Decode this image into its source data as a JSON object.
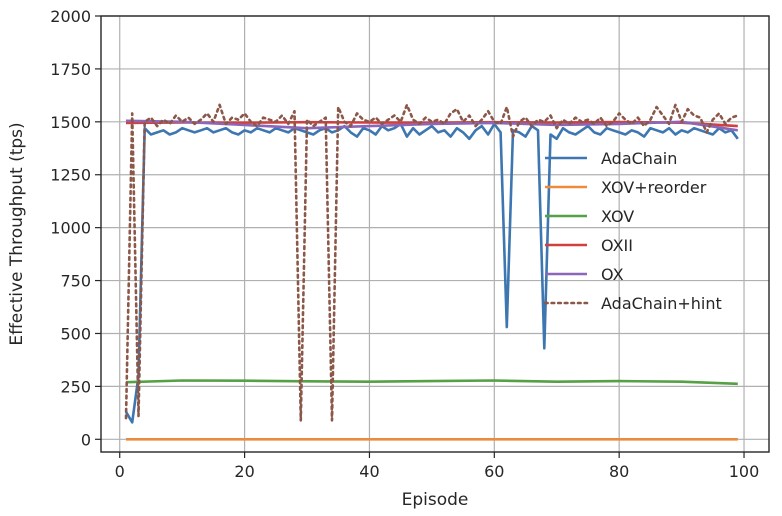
{
  "chart_data": {
    "type": "line",
    "xlabel": "Episode",
    "ylabel": "Effective Throughput (tps)",
    "xlim": [
      -3,
      104
    ],
    "ylim": [
      -60,
      2000
    ],
    "xticks": [
      0,
      20,
      40,
      60,
      80,
      100
    ],
    "yticks": [
      0,
      250,
      500,
      750,
      1000,
      1250,
      1500,
      1750,
      2000
    ],
    "grid": true,
    "legend_position": "center-right",
    "series": [
      {
        "name": "AdaChain",
        "color": "#3d76b0",
        "style": "solid",
        "x": [
          1,
          2,
          3,
          4,
          5,
          6,
          7,
          8,
          9,
          10,
          11,
          12,
          13,
          14,
          15,
          16,
          17,
          18,
          19,
          20,
          21,
          22,
          23,
          24,
          25,
          26,
          27,
          28,
          29,
          30,
          31,
          32,
          33,
          34,
          35,
          36,
          37,
          38,
          39,
          40,
          41,
          42,
          43,
          44,
          45,
          46,
          47,
          48,
          49,
          50,
          51,
          52,
          53,
          54,
          55,
          56,
          57,
          58,
          59,
          60,
          61,
          62,
          63,
          64,
          65,
          66,
          67,
          68,
          69,
          70,
          71,
          72,
          73,
          74,
          75,
          76,
          77,
          78,
          79,
          80,
          81,
          82,
          83,
          84,
          85,
          86,
          87,
          88,
          89,
          90,
          91,
          92,
          93,
          94,
          95,
          96,
          97,
          98,
          99
        ],
        "y": [
          130,
          80,
          300,
          1470,
          1440,
          1450,
          1460,
          1440,
          1450,
          1470,
          1460,
          1450,
          1460,
          1470,
          1450,
          1460,
          1470,
          1450,
          1440,
          1460,
          1450,
          1470,
          1460,
          1450,
          1470,
          1460,
          1450,
          1470,
          1460,
          1450,
          1440,
          1460,
          1470,
          1450,
          1460,
          1480,
          1450,
          1430,
          1470,
          1460,
          1440,
          1480,
          1460,
          1470,
          1490,
          1430,
          1470,
          1440,
          1460,
          1480,
          1450,
          1460,
          1430,
          1470,
          1450,
          1420,
          1460,
          1480,
          1440,
          1490,
          1450,
          530,
          1460,
          1450,
          1430,
          1480,
          1460,
          430,
          1440,
          1420,
          1470,
          1450,
          1440,
          1460,
          1480,
          1450,
          1440,
          1470,
          1460,
          1450,
          1440,
          1460,
          1450,
          1430,
          1470,
          1460,
          1450,
          1470,
          1440,
          1460,
          1450,
          1470,
          1460,
          1450,
          1440,
          1470,
          1450,
          1460,
          1420
        ]
      },
      {
        "name": "XOV+reorder",
        "color": "#ee8a3c",
        "style": "solid",
        "x": [
          1,
          99
        ],
        "y": [
          0,
          0
        ]
      },
      {
        "name": "XOV",
        "color": "#56a046",
        "style": "solid",
        "x": [
          1,
          10,
          20,
          30,
          40,
          50,
          60,
          70,
          80,
          90,
          99
        ],
        "y": [
          270,
          278,
          277,
          274,
          272,
          275,
          278,
          272,
          275,
          272,
          262
        ]
      },
      {
        "name": "OXII",
        "color": "#d1403f",
        "style": "solid",
        "x": [
          1,
          10,
          20,
          30,
          40,
          50,
          60,
          70,
          80,
          90,
          99
        ],
        "y": [
          1495,
          1497,
          1496,
          1498,
          1497,
          1496,
          1498,
          1497,
          1499,
          1496,
          1480
        ]
      },
      {
        "name": "OX",
        "color": "#8c67b9",
        "style": "solid",
        "x": [
          1,
          10,
          20,
          30,
          40,
          50,
          60,
          70,
          80,
          90,
          99
        ],
        "y": [
          1505,
          1500,
          1485,
          1470,
          1480,
          1490,
          1495,
          1485,
          1490,
          1500,
          1460
        ]
      },
      {
        "name": "AdaChain+hint",
        "color": "#8b5749",
        "style": "dotted",
        "x": [
          1,
          2,
          3,
          4,
          5,
          6,
          7,
          8,
          9,
          10,
          11,
          12,
          13,
          14,
          15,
          16,
          17,
          18,
          19,
          20,
          21,
          22,
          23,
          24,
          25,
          26,
          27,
          28,
          29,
          30,
          31,
          32,
          33,
          34,
          35,
          36,
          37,
          38,
          39,
          40,
          41,
          42,
          43,
          44,
          45,
          46,
          47,
          48,
          49,
          50,
          51,
          52,
          53,
          54,
          55,
          56,
          57,
          58,
          59,
          60,
          61,
          62,
          63,
          64,
          65,
          66,
          67,
          68,
          69,
          70,
          71,
          72,
          73,
          74,
          75,
          76,
          77,
          78,
          79,
          80,
          81,
          82,
          83,
          84,
          85,
          86,
          87,
          88,
          89,
          90,
          91,
          92,
          93,
          94,
          95,
          96,
          97,
          98,
          99
        ],
        "y": [
          100,
          1540,
          110,
          1500,
          1520,
          1480,
          1510,
          1490,
          1530,
          1500,
          1520,
          1490,
          1510,
          1540,
          1500,
          1580,
          1490,
          1520,
          1510,
          1540,
          1500,
          1480,
          1520,
          1510,
          1500,
          1530,
          1490,
          1550,
          90,
          1510,
          1480,
          1500,
          1520,
          90,
          1570,
          1500,
          1480,
          1540,
          1510,
          1500,
          1520,
          1490,
          1510,
          1530,
          1500,
          1580,
          1510,
          1490,
          1520,
          1500,
          1510,
          1490,
          1540,
          1560,
          1500,
          1530,
          1480,
          1510,
          1550,
          1500,
          1490,
          1570,
          1430,
          1500,
          1520,
          1480,
          1510,
          1500,
          1530,
          1470,
          1510,
          1490,
          1520,
          1500,
          1510,
          1490,
          1520,
          1480,
          1500,
          1540,
          1510,
          1490,
          1520,
          1480,
          1510,
          1570,
          1530,
          1490,
          1580,
          1500,
          1560,
          1530,
          1520,
          1450,
          1510,
          1540,
          1490,
          1520,
          1530
        ]
      }
    ]
  }
}
